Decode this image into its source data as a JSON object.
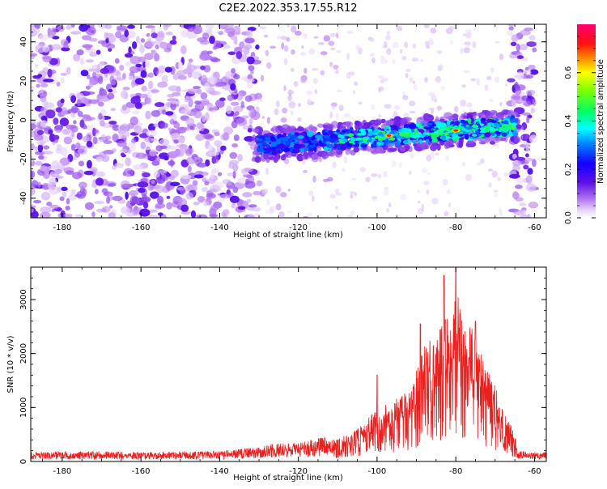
{
  "title": "C2E2.2022.353.17.55.R12",
  "chart_data": [
    {
      "type": "heatmap",
      "title": "C2E2.2022.353.17.55.R12",
      "xlabel": "Height of straight line (km)",
      "ylabel": "Frequency (Hz)",
      "xlim": [
        -188,
        -57
      ],
      "ylim": [
        -50,
        49
      ],
      "xticks": [
        -180,
        -160,
        -140,
        -120,
        -100,
        -80,
        -60
      ],
      "yticks": [
        -40,
        -20,
        0,
        20,
        40
      ],
      "colorbar": {
        "label": "Normalized spectral amplitude",
        "range": [
          0,
          0.8
        ],
        "ticks": [
          0.0,
          0.2,
          0.4,
          0.6
        ],
        "colormap": [
          "#ffffff",
          "#d8b4f8",
          "#7a1fe0",
          "#1400ff",
          "#00ffff",
          "#20ff20",
          "#ffff00",
          "#ff8000",
          "#ff0000",
          "#ff0070"
        ]
      },
      "features": [
        {
          "region": "diffuse noise",
          "x_range": [
            -188,
            -130
          ],
          "freq_range": [
            -50,
            49
          ],
          "amplitude": 0.1
        },
        {
          "region": "diffuse noise (right edge)",
          "x_range": [
            -66,
            -60
          ],
          "freq_range": [
            -50,
            49
          ],
          "amplitude": 0.1
        },
        {
          "region": "signal band",
          "x_range": [
            -130,
            -65
          ],
          "center_freq_start": -13,
          "center_freq_end": -3,
          "amplitude_peak": 0.75,
          "peak_locations_km": [
            -97,
            -80
          ]
        }
      ],
      "grid": false
    },
    {
      "type": "line",
      "xlabel": "Height of straight line (km)",
      "ylabel": "SNR (10 * v/v)",
      "xlim": [
        -188,
        -57
      ],
      "ylim": [
        0,
        3600
      ],
      "xticks": [
        -180,
        -160,
        -140,
        -120,
        -100,
        -80,
        -60
      ],
      "yticks": [
        0,
        1000,
        2000,
        3000
      ],
      "color": "#e8201e",
      "grid": false,
      "series": [
        {
          "x": [
            -188,
            -180,
            -170,
            -160,
            -150,
            -140,
            -135,
            -130,
            -125,
            -120,
            -115,
            -110,
            -105,
            -100,
            -97,
            -94,
            -91,
            -89,
            -87,
            -85,
            -83,
            -81,
            -80,
            -78,
            -76,
            -74,
            -72,
            -70,
            -68,
            -66,
            -64,
            -62,
            -58
          ],
          "values": [
            160,
            160,
            170,
            150,
            160,
            170,
            200,
            240,
            310,
            300,
            380,
            420,
            600,
            1000,
            1100,
            1200,
            1400,
            2000,
            2400,
            2200,
            2700,
            2600,
            3300,
            2600,
            2500,
            2100,
            1700,
            1400,
            1000,
            700,
            180,
            150,
            150
          ],
          "peaks": [
            {
              "x": -100,
              "y": 1600
            },
            {
              "x": -89,
              "y": 2550
            },
            {
              "x": -83,
              "y": 3450
            },
            {
              "x": -80,
              "y": 3620
            },
            {
              "x": -75,
              "y": 2600
            }
          ]
        }
      ]
    }
  ]
}
